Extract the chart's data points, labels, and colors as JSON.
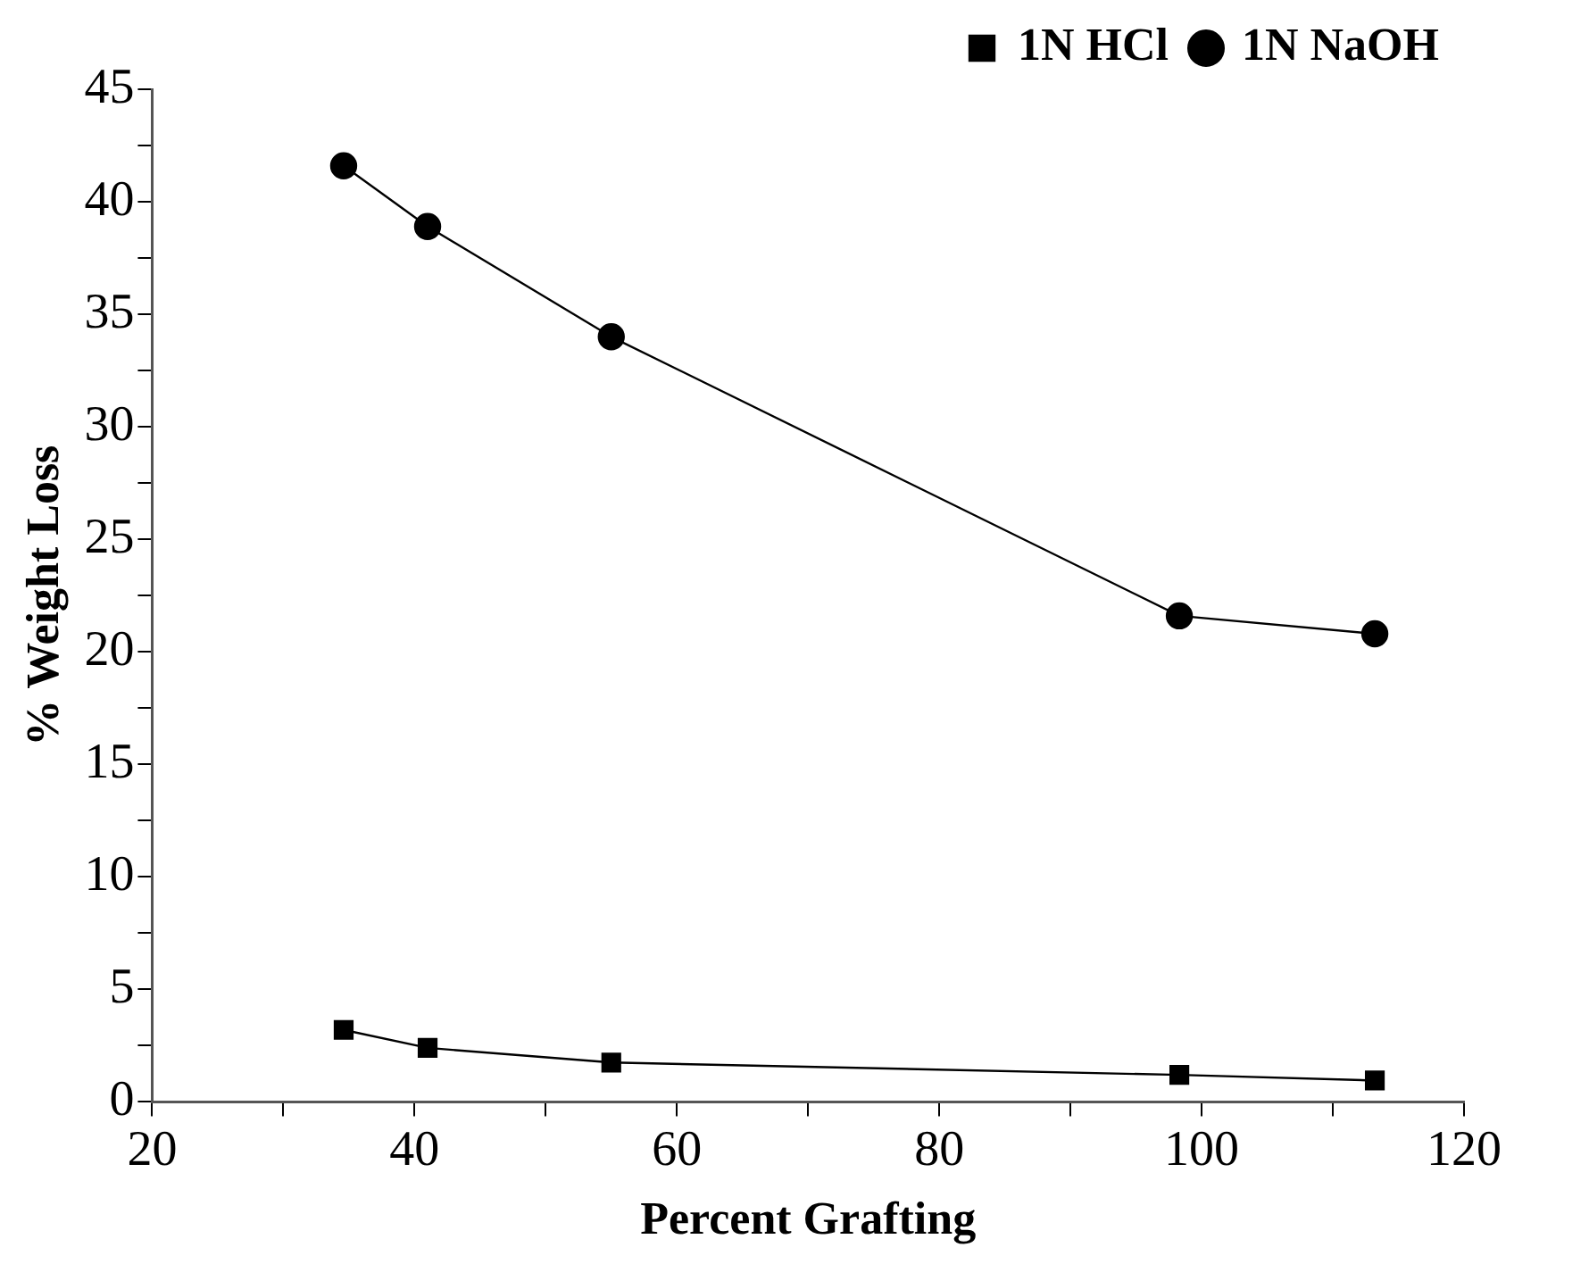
{
  "chart_data": {
    "type": "line",
    "xlabel": "Percent Grafting",
    "ylabel": "% Weight Loss",
    "x": [
      34.6,
      41.0,
      55.0,
      98.3,
      113.2
    ],
    "series": [
      {
        "name": "1N HCl",
        "color": "#000000",
        "marker": "square",
        "values": [
          3.2,
          2.4,
          1.75,
          1.2,
          0.95
        ]
      },
      {
        "name": "1N NaOH",
        "color": "#000000",
        "marker": "circle",
        "values": [
          41.6,
          38.9,
          34.0,
          21.6,
          20.8
        ]
      }
    ],
    "xlim": [
      20,
      120
    ],
    "xticks": [
      20,
      {
        "value": 30,
        "label": null
      },
      40,
      {
        "value": 50,
        "label": null
      },
      60,
      {
        "value": 70,
        "label": null
      },
      80,
      {
        "value": 90,
        "label": null
      },
      100,
      {
        "value": 110,
        "label": null
      },
      120
    ],
    "ylim": [
      0,
      45
    ],
    "yticks": [
      0,
      {
        "value": 2.5,
        "label": null
      },
      5,
      {
        "value": 7.5,
        "label": null
      },
      10,
      {
        "value": 12.5,
        "label": null
      },
      15,
      {
        "value": 17.5,
        "label": null
      },
      20,
      {
        "value": 22.5,
        "label": null
      },
      25,
      {
        "value": 27.5,
        "label": null
      },
      30,
      {
        "value": 32.5,
        "label": null
      },
      35,
      {
        "value": 37.5,
        "label": null
      },
      40,
      {
        "value": 42.5,
        "label": null
      },
      45
    ],
    "grid": false,
    "legend": "top right",
    "line_style": "solid"
  }
}
